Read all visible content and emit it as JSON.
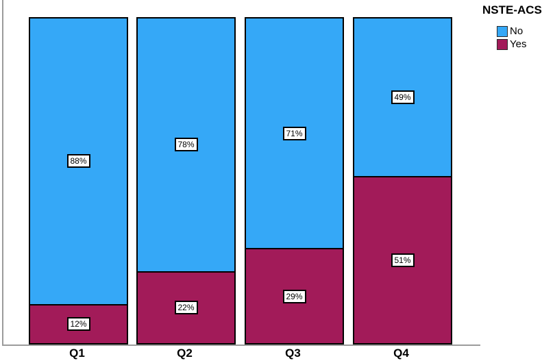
{
  "chart_data": {
    "type": "bar",
    "stacked": true,
    "stacked_unit": "percent",
    "categories": [
      "Q1",
      "Q2",
      "Q3",
      "Q4"
    ],
    "series": [
      {
        "name": "No",
        "color": "#35A8F7",
        "values": [
          88,
          78,
          71,
          49
        ],
        "labels": [
          "88%",
          "78%",
          "71%",
          "49%"
        ]
      },
      {
        "name": "Yes",
        "color": "#A21B59",
        "values": [
          12,
          22,
          29,
          51
        ],
        "labels": [
          "12%",
          "22%",
          "29%",
          "51%"
        ]
      }
    ],
    "title": "",
    "xlabel": "",
    "ylabel": "",
    "ylim": [
      0,
      100
    ],
    "grid": false,
    "legend_title": "NSTE-ACS",
    "legend_position": "top-right",
    "axis_color": "#9b9b9b",
    "bar_border_color": "#000000",
    "label_box_background": "#ffffff"
  },
  "legend": {
    "title": "NSTE-ACS",
    "items": [
      {
        "label": "No",
        "color": "#35A8F7"
      },
      {
        "label": "Yes",
        "color": "#A21B59"
      }
    ]
  }
}
